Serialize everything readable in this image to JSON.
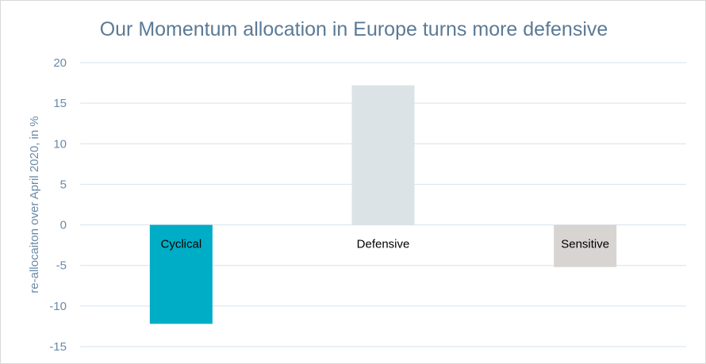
{
  "chart_data": {
    "type": "bar",
    "title": "Our Momentum allocation in Europe turns more defensive",
    "xlabel": "",
    "ylabel": "re-allocaiton over April 2020, in %",
    "categories": [
      "Cyclical",
      "Defensive",
      "Sensitive"
    ],
    "values": [
      -12.2,
      17.2,
      -5.2
    ],
    "ylim": [
      -15,
      20
    ],
    "yticks": [
      20,
      15,
      10,
      5,
      0,
      -5,
      -10,
      -15
    ],
    "grid": true,
    "legend": "none"
  },
  "colors": {
    "title": "#5b7a95",
    "axis_text": "#6a8aa8",
    "gridline": "#d6e2ec",
    "bars": [
      "#00adc6",
      "#dbe3e7",
      "#d8d4d2"
    ]
  }
}
